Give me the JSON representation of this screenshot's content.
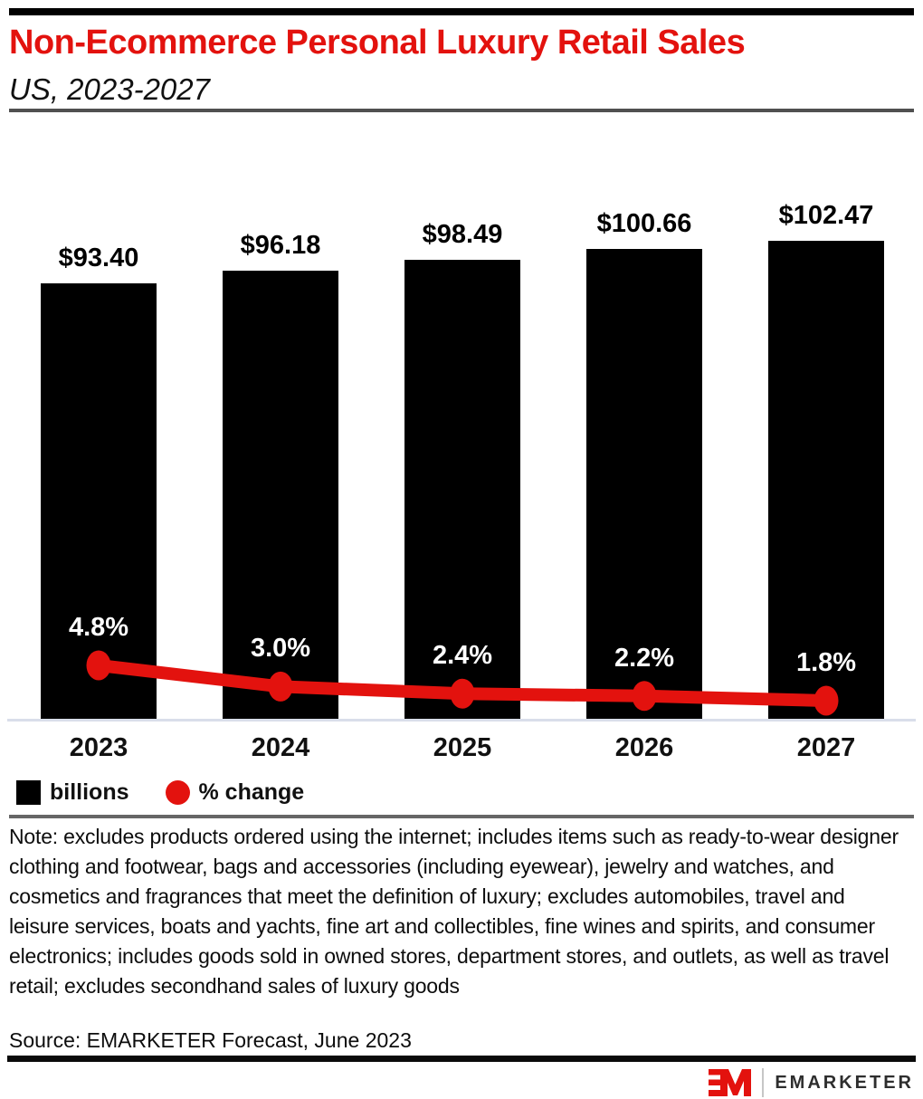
{
  "header": {
    "title": "Non-Ecommerce Personal Luxury Retail Sales",
    "subtitle": "US, 2023-2027"
  },
  "chart_data": {
    "type": "bar",
    "title": "Non-Ecommerce Personal Luxury Retail Sales",
    "subtitle": "US, 2023-2027",
    "categories": [
      "2023",
      "2024",
      "2025",
      "2026",
      "2027"
    ],
    "series": [
      {
        "name": "billions",
        "type": "bar",
        "values": [
          93.4,
          96.18,
          98.49,
          100.66,
          102.47
        ],
        "labels": [
          "$93.40",
          "$96.18",
          "$98.49",
          "$100.66",
          "$102.47"
        ],
        "color": "#000000"
      },
      {
        "name": "% change",
        "type": "line",
        "values": [
          4.8,
          3.0,
          2.4,
          2.2,
          1.8
        ],
        "labels": [
          "4.8%",
          "3.0%",
          "2.4%",
          "2.2%",
          "1.8%"
        ],
        "color": "#e3120e"
      }
    ],
    "legend": [
      {
        "label": "billions",
        "swatch": "square",
        "color": "#000000"
      },
      {
        "label": "% change",
        "swatch": "circle",
        "color": "#e3120e"
      }
    ],
    "xlabel": "",
    "ylabel": "",
    "bar_axis_range": [
      0,
      102.47
    ],
    "grid": false,
    "legend_position": "bottom-left"
  },
  "footer": {
    "note": "Note: excludes products ordered using the internet; includes items such as ready-to-wear designer clothing and footwear, bags and accessories (including eyewear), jewelry and watches, and cosmetics and fragrances that meet the definition of luxury; excludes automobiles, travel and leisure services, boats and yachts, fine art and collectibles, fine wines and spirits, and consumer electronics; includes goods sold in owned stores, department stores, and outlets, as well as travel retail; excludes secondhand sales of luxury goods",
    "source": "Source: EMARKETER Forecast, June 2023"
  },
  "branding": {
    "logo_text": "EMARKETER"
  },
  "colors": {
    "brand_red": "#e3120e",
    "bar_black": "#000000",
    "axis_line": "#d9deea",
    "divider_gray": "#555555"
  }
}
